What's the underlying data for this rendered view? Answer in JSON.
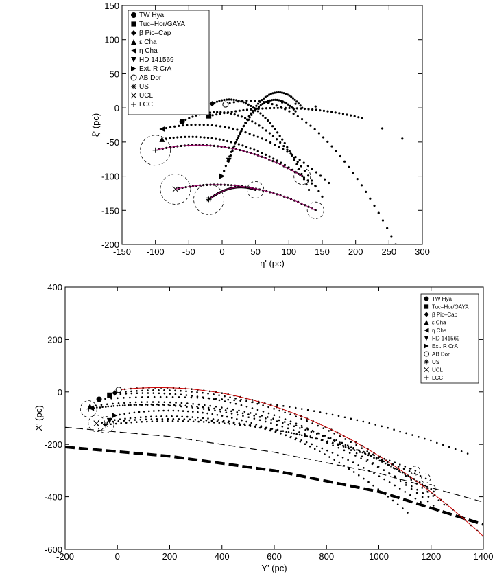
{
  "legend_entries": [
    "TW Hya",
    "Tuc–Hor/GAYA",
    "β Pic–Cap",
    "ε Cha",
    "η Cha",
    "HD 141569",
    "Ext. R CrA",
    "AB Dor",
    "US",
    "UCL",
    "LCC"
  ],
  "legend_markers": [
    "filled-circle",
    "filled-square",
    "filled-diamond",
    "filled-triangle-up",
    "filled-triangle-left",
    "filled-triangle-down",
    "filled-triangle-right",
    "open-circle",
    "asterisk",
    "cross",
    "plus"
  ],
  "colors": {
    "axes": "#000000",
    "highlight_track": "#990066",
    "red_track": "#cc0000"
  },
  "chart_data": [
    {
      "type": "scatter",
      "xlabel": "η' (pc)",
      "ylabel": "ξ' (pc)",
      "xlim": [
        -150,
        300
      ],
      "ylim": [
        -200,
        150
      ],
      "xticks": [
        -150,
        -100,
        -50,
        0,
        50,
        100,
        150,
        200,
        250,
        300
      ],
      "yticks": [
        -200,
        -150,
        -100,
        -50,
        0,
        50,
        100,
        150
      ],
      "legend": "top-left",
      "grid": false,
      "groups": [
        {
          "name": "TW Hya",
          "start": [
            -60,
            -20
          ],
          "end": [
            150,
            -130
          ]
        },
        {
          "name": "Tuc–Hor/GAYA",
          "start": [
            -20,
            -12
          ],
          "end": [
            210,
            -15
          ]
        },
        {
          "name": "β Pic–Cap",
          "start": [
            -15,
            6
          ],
          "end": [
            130,
            -120
          ]
        },
        {
          "name": "ε Cha",
          "start": [
            -90,
            -46
          ],
          "end": [
            140,
            -115
          ]
        },
        {
          "name": "η Cha",
          "start": [
            -90,
            -31
          ],
          "end": [
            160,
            -110
          ]
        },
        {
          "name": "HD 141569",
          "start": [
            10,
            -77
          ],
          "end": [
            120,
            0
          ]
        },
        {
          "name": "Ext. R CrA",
          "start": [
            0,
            -100
          ],
          "end": [
            110,
            -5
          ]
        },
        {
          "name": "AB Dor",
          "start": [
            5,
            5
          ],
          "end": [
            260,
            -200
          ]
        },
        {
          "name": "US",
          "start": [
            -20,
            -134
          ],
          "end": [
            50,
            -120
          ]
        },
        {
          "name": "UCL",
          "start": [
            -70,
            -119
          ],
          "end": [
            140,
            -150
          ]
        },
        {
          "name": "LCC",
          "start": [
            -100,
            -62
          ],
          "end": [
            120,
            -100
          ]
        }
      ],
      "outlier_points": [
        [
          70,
          8
        ],
        [
          90,
          8
        ],
        [
          110,
          6
        ],
        [
          140,
          2
        ],
        [
          240,
          -30
        ],
        [
          270,
          -45
        ]
      ]
    },
    {
      "type": "scatter",
      "xlabel": "Y' (pc)",
      "ylabel": "X' (pc)",
      "xlim": [
        -200,
        1400
      ],
      "ylim": [
        -600,
        400
      ],
      "xticks": [
        -200,
        0,
        200,
        400,
        600,
        800,
        1000,
        1200,
        1400
      ],
      "yticks": [
        -600,
        -400,
        -200,
        0,
        200,
        400
      ],
      "legend": "top-right",
      "grid": false,
      "groups": [
        {
          "name": "TW Hya",
          "start": [
            -70,
            -28
          ],
          "end": [
            1340,
            -235
          ]
        },
        {
          "name": "Tuc–Hor/GAYA",
          "start": [
            -30,
            -12
          ],
          "end": [
            1230,
            -450
          ]
        },
        {
          "name": "β Pic–Cap",
          "start": [
            -10,
            -4
          ],
          "end": [
            1250,
            -430
          ]
        },
        {
          "name": "ε Cha",
          "start": [
            -105,
            -55
          ],
          "end": [
            1210,
            -380
          ]
        },
        {
          "name": "η Cha",
          "start": [
            -100,
            -62
          ],
          "end": [
            1190,
            -400
          ]
        },
        {
          "name": "HD 141569",
          "start": [
            -30,
            -110
          ],
          "end": [
            1160,
            -420
          ]
        },
        {
          "name": "Ext. R CrA",
          "start": [
            -10,
            -90
          ],
          "end": [
            1110,
            -460
          ]
        },
        {
          "name": "AB Dor",
          "start": [
            5,
            8
          ],
          "end": [
            1400,
            -550
          ]
        },
        {
          "name": "US",
          "start": [
            -45,
            -125
          ],
          "end": [
            1140,
            -300
          ]
        },
        {
          "name": "UCL",
          "start": [
            -80,
            -120
          ],
          "end": [
            1180,
            -330
          ]
        },
        {
          "name": "LCC",
          "start": [
            -110,
            -65
          ],
          "end": [
            1200,
            -370
          ]
        }
      ],
      "lines": [
        {
          "style": "dashed",
          "points": [
            [
              -200,
              -135
            ],
            [
              200,
              -170
            ],
            [
              600,
              -230
            ],
            [
              1000,
              -310
            ],
            [
              1400,
              -420
            ]
          ]
        },
        {
          "style": "thick-dashed",
          "points": [
            [
              -200,
              -210
            ],
            [
              200,
              -245
            ],
            [
              600,
              -300
            ],
            [
              1000,
              -380
            ],
            [
              1400,
              -505
            ]
          ]
        }
      ]
    }
  ]
}
